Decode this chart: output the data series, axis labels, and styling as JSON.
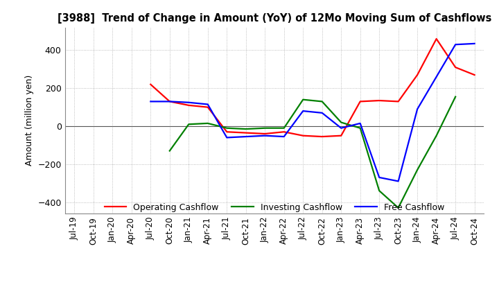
{
  "title": "[3988]  Trend of Change in Amount (YoY) of 12Mo Moving Sum of Cashflows",
  "ylabel": "Amount (million yen)",
  "ylim": [
    -460,
    520
  ],
  "yticks": [
    -400,
    -200,
    0,
    200,
    400
  ],
  "x_labels": [
    "Jul-19",
    "Oct-19",
    "Jan-20",
    "Apr-20",
    "Jul-20",
    "Oct-20",
    "Jan-21",
    "Apr-21",
    "Jul-21",
    "Oct-21",
    "Jan-22",
    "Apr-22",
    "Jul-22",
    "Oct-22",
    "Jan-23",
    "Apr-23",
    "Jul-23",
    "Oct-23",
    "Jan-24",
    "Apr-24",
    "Jul-24",
    "Oct-24"
  ],
  "operating": [
    null,
    null,
    null,
    null,
    220,
    130,
    110,
    100,
    -30,
    -35,
    -40,
    -30,
    -50,
    -55,
    -50,
    130,
    135,
    130,
    270,
    460,
    310,
    270
  ],
  "investing": [
    null,
    null,
    null,
    null,
    null,
    -130,
    10,
    15,
    -10,
    -15,
    -10,
    -10,
    140,
    130,
    20,
    -10,
    -340,
    -430,
    -230,
    -50,
    155,
    null
  ],
  "free": [
    null,
    null,
    null,
    null,
    130,
    130,
    125,
    115,
    -60,
    -55,
    -50,
    -55,
    80,
    70,
    -10,
    15,
    -270,
    -290,
    90,
    260,
    430,
    435
  ],
  "operating_color": "#ff0000",
  "investing_color": "#008000",
  "free_color": "#0000ff",
  "grid_color": "#aaaaaa",
  "background_color": "#ffffff",
  "legend_labels": [
    "Operating Cashflow",
    "Investing Cashflow",
    "Free Cashflow"
  ]
}
